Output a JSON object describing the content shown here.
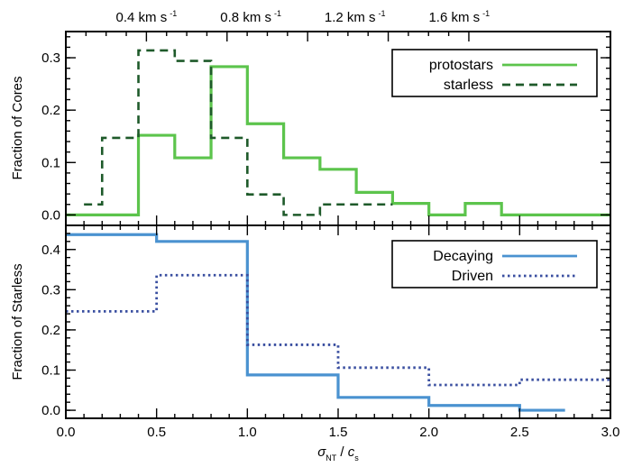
{
  "chart_data": [
    {
      "panel": "top",
      "type": "step-histogram",
      "ylabel": "Fraction of Cores",
      "xlim": [
        0.0,
        3.0
      ],
      "ylim": [
        -0.02,
        0.35
      ],
      "yticks": [
        0.0,
        0.1,
        0.2,
        0.3
      ],
      "ytick_labels": [
        "0.0",
        "0.1",
        "0.2",
        "0.3"
      ],
      "top_axis": {
        "ticks": [
          0.4,
          0.8,
          1.2,
          1.6
        ],
        "tick_labels": [
          "0.4 km s",
          "0.8 km s",
          "1.2 km s",
          "1.6 km s"
        ],
        "tick_label_superscript": "-1",
        "tick_positions_sigma": [
          0.444,
          1.019,
          1.593,
          2.167
        ]
      },
      "legend": {
        "placement": "top-right"
      },
      "series": [
        {
          "name": "protostars",
          "color": "#5cc44c",
          "style": "solid",
          "edges": [
            0.0,
            0.4,
            0.6,
            0.8,
            1.0,
            1.2,
            1.4,
            1.6,
            1.8,
            2.0,
            2.2,
            2.4,
            3.0
          ],
          "values": [
            0.0,
            0.152,
            0.109,
            0.283,
            0.174,
            0.109,
            0.087,
            0.043,
            0.022,
            0.0,
            0.022,
            0.0
          ]
        },
        {
          "name": "starless",
          "color": "#1e5a2a",
          "style": "dashed",
          "edges": [
            0.1,
            0.2,
            0.4,
            0.6,
            0.8,
            1.0,
            1.2,
            1.4,
            1.8
          ],
          "values": [
            0.02,
            0.147,
            0.314,
            0.294,
            0.147,
            0.039,
            0.0,
            0.02
          ]
        }
      ]
    },
    {
      "panel": "bottom",
      "type": "step-histogram",
      "ylabel": "Fraction of Starless",
      "xlabel": "σ / c",
      "xlabel_parts": {
        "sigma": "σ",
        "sigma_sub": "NT",
        "slash": " / ",
        "c": "c",
        "c_sub": "s"
      },
      "xlim": [
        0.0,
        3.0
      ],
      "ylim": [
        -0.02,
        0.46
      ],
      "xticks": [
        0.0,
        0.5,
        1.0,
        1.5,
        2.0,
        2.5,
        3.0
      ],
      "xtick_labels": [
        "0.0",
        "0.5",
        "1.0",
        "1.5",
        "2.0",
        "2.5",
        "3.0"
      ],
      "yticks": [
        0.0,
        0.1,
        0.2,
        0.3,
        0.4
      ],
      "ytick_labels": [
        "0.0",
        "0.1",
        "0.2",
        "0.3",
        "0.4"
      ],
      "legend": {
        "placement": "top-right"
      },
      "series": [
        {
          "name": "Decaying",
          "color": "#4a92d0",
          "style": "solid",
          "edges": [
            0.0,
            0.5,
            1.0,
            1.5,
            2.0,
            2.5,
            2.75
          ],
          "values": [
            0.437,
            0.42,
            0.088,
            0.032,
            0.012,
            0.0
          ]
        },
        {
          "name": "Driven",
          "color": "#3a4fa0",
          "style": "dotted",
          "edges": [
            0.0,
            0.5,
            1.0,
            1.5,
            2.0,
            2.5,
            3.0
          ],
          "values": [
            0.246,
            0.336,
            0.163,
            0.106,
            0.063,
            0.076
          ]
        }
      ]
    }
  ]
}
